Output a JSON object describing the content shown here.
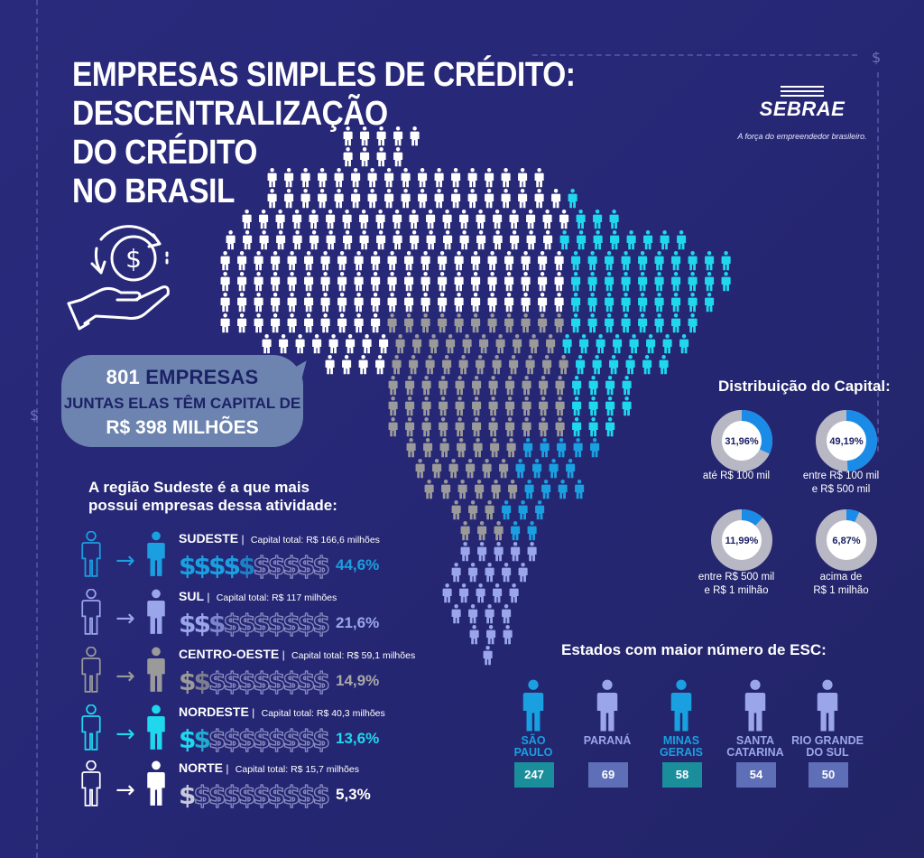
{
  "title_lines": [
    "EMPRESAS SIMPLES DE CRÉDITO:",
    "DESCENTRALIZAÇÃO",
    "DO CRÉDITO",
    "NO BRASIL"
  ],
  "logo": {
    "name": "SEBRAE",
    "tagline": "A força do empreendedor brasileiro."
  },
  "summary": {
    "count": "801",
    "count_label": "EMPRESAS",
    "line2": "JUNTAS ELAS TÊM CAPITAL DE",
    "line3": "R$ 398 MILHÕES"
  },
  "region_heading": [
    "A região Sudeste é a que mais",
    "possui empresas dessa atividade:"
  ],
  "regions": [
    {
      "name": "SUDESTE",
      "capital": "Capital total: R$ 166,6 milhões",
      "percent": "44,6%",
      "filled": 4.5,
      "color": "#1aa0e0",
      "pct_color": "#1aa0e0"
    },
    {
      "name": "SUL",
      "capital": "Capital total: R$ 117 milhões",
      "percent": "21,6%",
      "filled": 2.5,
      "color": "#9ba6ea",
      "pct_color": "#9ba6ea"
    },
    {
      "name": "CENTRO-OESTE",
      "capital": "Capital total: R$ 59,1 milhões",
      "percent": "14,9%",
      "filled": 1.5,
      "color": "#9a9a9a",
      "pct_color": "#a8a8a8"
    },
    {
      "name": "NORDESTE",
      "capital": "Capital total: R$ 40,3 milhões",
      "percent": "13,6%",
      "filled": 1.5,
      "color": "#1fd8ee",
      "pct_color": "#1fd8ee"
    },
    {
      "name": "NORTE",
      "capital": "Capital total: R$ 15,7 milhões",
      "percent": "5,3%",
      "filled": 0.5,
      "color": "#ffffff",
      "pct_color": "#ffffff"
    }
  ],
  "dollar_glyph": "$",
  "arrow_glyph": "→",
  "capital_distribution": {
    "title": "Distribuição do Capital:",
    "items": [
      {
        "value": "31,96%",
        "fraction": 0.3196,
        "caption": [
          "até R$ 100 mil"
        ]
      },
      {
        "value": "49,19%",
        "fraction": 0.4919,
        "caption": [
          "entre R$ 100 mil",
          "e R$ 500 mil"
        ]
      },
      {
        "value": "11,99%",
        "fraction": 0.1199,
        "caption": [
          "entre R$ 500 mil",
          "e R$ 1 milhão"
        ]
      },
      {
        "value": "6,87%",
        "fraction": 0.0687,
        "caption": [
          "acima de",
          "R$ 1 milhão"
        ]
      }
    ]
  },
  "states": {
    "title": "Estados com maior número de ESC:",
    "items": [
      {
        "name": [
          "SÃO",
          "PAULO"
        ],
        "count": "247",
        "color": "#1aa0e0",
        "box": "#1b8e9c"
      },
      {
        "name": [
          "PARANÁ"
        ],
        "count": "69",
        "color": "#9ba6ea",
        "box": "#5e6fb8"
      },
      {
        "name": [
          "MINAS",
          "GERAIS"
        ],
        "count": "58",
        "color": "#1aa0e0",
        "box": "#1b8e9c"
      },
      {
        "name": [
          "SANTA",
          "CATARINA"
        ],
        "count": "54",
        "color": "#9ba6ea",
        "box": "#5e6fb8"
      },
      {
        "name": [
          "RIO GRANDE",
          "DO SUL"
        ],
        "count": "50",
        "color": "#9ba6ea",
        "box": "#5e6fb8"
      }
    ]
  },
  "colors": {
    "background": "#262775",
    "norte": "#ffffff",
    "nordeste": "#1fd8ee",
    "centro_oeste": "#9a9a9a",
    "sudeste": "#1aa0e0",
    "sul": "#9ba6ea",
    "donut_track": "#b8b8c4",
    "donut_fill": "#1a8ce8"
  },
  "icons": [
    "hand-with-dollar-coin-icon",
    "person-icon",
    "arrow-right-icon",
    "dollar-icon"
  ]
}
